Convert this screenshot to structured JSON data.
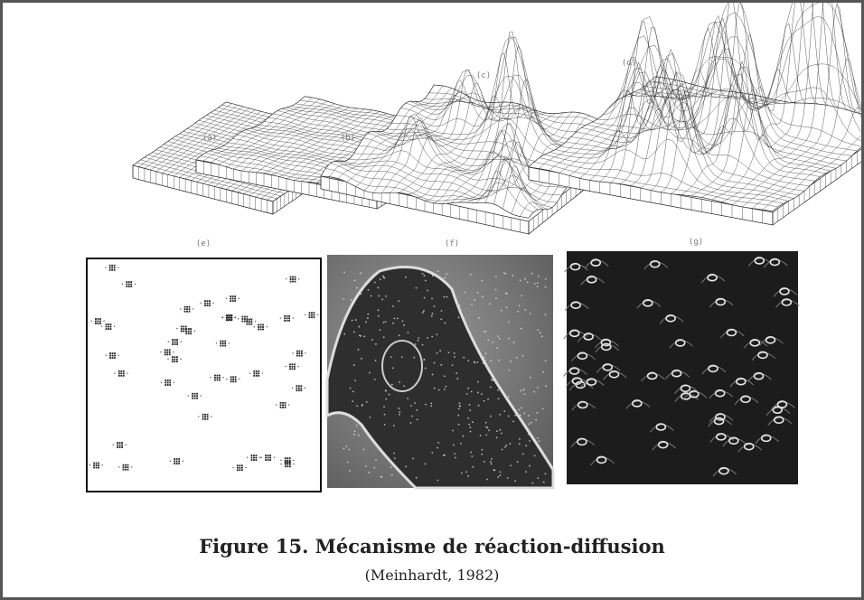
{
  "figure": {
    "panels": [
      {
        "label": "(a)"
      },
      {
        "label": "(b)"
      },
      {
        "label": "(c)"
      },
      {
        "label": "(d)"
      },
      {
        "label": "(e)"
      },
      {
        "label": "(f)"
      },
      {
        "label": "(g)"
      }
    ],
    "caption": "Figure 15. Mécanisme de réaction-diffusion",
    "source": "(Meinhardt, 1982)"
  }
}
